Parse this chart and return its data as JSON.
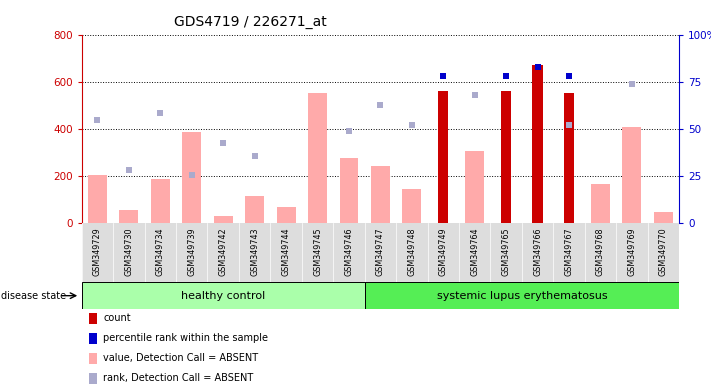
{
  "title": "GDS4719 / 226271_at",
  "samples": [
    "GSM349729",
    "GSM349730",
    "GSM349734",
    "GSM349739",
    "GSM349742",
    "GSM349743",
    "GSM349744",
    "GSM349745",
    "GSM349746",
    "GSM349747",
    "GSM349748",
    "GSM349749",
    "GSM349764",
    "GSM349765",
    "GSM349766",
    "GSM349767",
    "GSM349768",
    "GSM349769",
    "GSM349770"
  ],
  "healthy_count": 9,
  "group1_label": "healthy control",
  "group2_label": "systemic lupus erythematosus",
  "ylim_left": [
    0,
    800
  ],
  "ylim_right": [
    0,
    100
  ],
  "yticks_left": [
    0,
    200,
    400,
    600,
    800
  ],
  "yticks_right": [
    0,
    25,
    50,
    75,
    100
  ],
  "count_values": [
    null,
    null,
    null,
    null,
    null,
    null,
    null,
    null,
    null,
    null,
    null,
    560,
    null,
    560,
    670,
    550,
    null,
    null,
    null
  ],
  "percentile_values": [
    null,
    null,
    null,
    null,
    null,
    null,
    null,
    null,
    null,
    null,
    null,
    78,
    null,
    78,
    83,
    78,
    null,
    null,
    null
  ],
  "absent_value_bars": [
    205,
    55,
    185,
    385,
    30,
    115,
    65,
    550,
    275,
    240,
    145,
    null,
    305,
    null,
    null,
    null,
    165,
    405,
    45
  ],
  "absent_rank_dots": [
    435,
    225,
    465,
    205,
    340,
    285,
    null,
    null,
    390,
    500,
    415,
    null,
    545,
    null,
    null,
    415,
    null,
    590,
    null
  ],
  "bg_color": "#ffffff",
  "bar_color_count": "#cc0000",
  "bar_color_absent_value": "#ffaaaa",
  "dot_color_percentile": "#0000cc",
  "dot_color_absent_rank": "#aaaacc",
  "group1_color": "#aaffaa",
  "group2_color": "#55ee55",
  "axis_left_color": "#cc0000",
  "axis_right_color": "#0000cc"
}
